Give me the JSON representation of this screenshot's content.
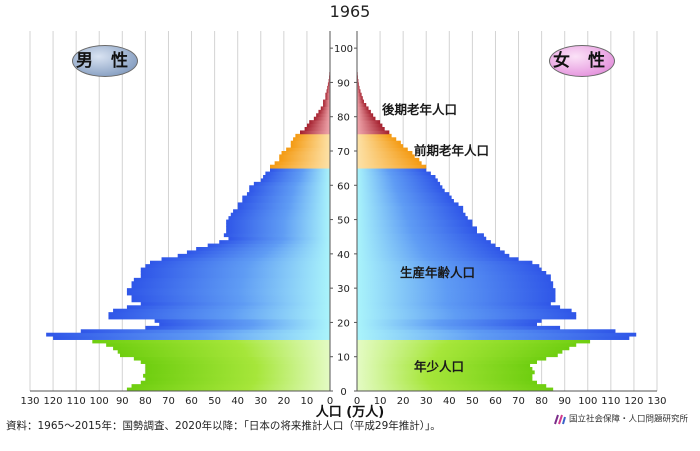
{
  "title": "1965",
  "badges": {
    "male": "男 性",
    "female": "女 性"
  },
  "segments": {
    "elderly_late": "後期老年人口",
    "elderly_early": "前期老年人口",
    "working": "生産年齢人口",
    "youth": "年少人口"
  },
  "x_axis_label": "人口 (万人)",
  "source": "資料：1965〜2015年：国勢調査、2020年以降：「日本の将来推計人口（平成29年推計）」。",
  "organization": "国立社会保障・人口問題研究所",
  "colors": {
    "youth": "#7fd61c",
    "working_inner": "#a8f4fb",
    "working_outer": "#2f56e8",
    "elderly_early": "#f7a21d",
    "elderly_late": "#b5323f",
    "grid": "#d3d3d3"
  },
  "chart_data": {
    "type": "bar",
    "orientation": "horizontal",
    "title": "1965",
    "xlabel": "人口 (万人)",
    "xlim": [
      0,
      130
    ],
    "ylim": [
      0,
      105
    ],
    "y_ticks": [
      0,
      10,
      20,
      30,
      40,
      50,
      60,
      70,
      80,
      90,
      100
    ],
    "x_ticks": [
      0,
      10,
      20,
      30,
      40,
      50,
      60,
      70,
      80,
      90,
      100,
      110,
      120,
      130
    ],
    "grid": true,
    "series": [
      {
        "name": "男 性",
        "ages": [
          0,
          1,
          2,
          3,
          4,
          5,
          6,
          7,
          8,
          9,
          10,
          11,
          12,
          13,
          14,
          15,
          16,
          17,
          18,
          19,
          20,
          21,
          22,
          23,
          24,
          25,
          26,
          27,
          28,
          29,
          30,
          31,
          32,
          33,
          34,
          35,
          36,
          37,
          38,
          39,
          40,
          41,
          42,
          43,
          44,
          45,
          46,
          47,
          48,
          49,
          50,
          51,
          52,
          53,
          54,
          55,
          56,
          57,
          58,
          59,
          60,
          61,
          62,
          63,
          64,
          65,
          66,
          67,
          68,
          69,
          70,
          71,
          72,
          73,
          74,
          75,
          76,
          77,
          78,
          79,
          80,
          81,
          82,
          83,
          84,
          85,
          86,
          87,
          88,
          89,
          90,
          91,
          92,
          93,
          94,
          95,
          96,
          97,
          98,
          99,
          100
        ],
        "values": [
          88,
          86,
          82,
          80,
          81,
          80,
          80,
          80,
          82,
          85,
          91,
          92,
          94,
          97,
          103,
          120,
          123,
          108,
          80,
          74,
          76,
          96,
          96,
          94,
          88,
          82,
          86,
          86,
          88,
          88,
          86,
          86,
          85,
          82,
          82,
          82,
          80,
          78,
          73,
          66,
          62,
          58,
          53,
          48,
          44,
          46,
          45,
          45,
          45,
          45,
          44,
          43,
          42,
          40,
          40,
          38,
          38,
          36,
          35,
          35,
          33,
          30,
          29,
          28,
          26,
          26,
          24,
          22,
          22,
          21,
          19,
          17,
          17,
          16,
          15,
          13,
          11,
          10,
          9,
          7,
          6,
          5,
          4,
          3,
          3,
          2,
          2,
          1.5,
          1.2,
          0.9,
          0.6,
          0.4,
          0.3,
          0.2,
          0.1,
          0.1,
          0,
          0,
          0,
          0,
          0
        ]
      },
      {
        "name": "女 性",
        "ages": [
          0,
          1,
          2,
          3,
          4,
          5,
          6,
          7,
          8,
          9,
          10,
          11,
          12,
          13,
          14,
          15,
          16,
          17,
          18,
          19,
          20,
          21,
          22,
          23,
          24,
          25,
          26,
          27,
          28,
          29,
          30,
          31,
          32,
          33,
          34,
          35,
          36,
          37,
          38,
          39,
          40,
          41,
          42,
          43,
          44,
          45,
          46,
          47,
          48,
          49,
          50,
          51,
          52,
          53,
          54,
          55,
          56,
          57,
          58,
          59,
          60,
          61,
          62,
          63,
          64,
          65,
          66,
          67,
          68,
          69,
          70,
          71,
          72,
          73,
          74,
          75,
          76,
          77,
          78,
          79,
          80,
          81,
          82,
          83,
          84,
          85,
          86,
          87,
          88,
          89,
          90,
          91,
          92,
          93,
          94,
          95,
          96,
          97,
          98,
          99,
          100
        ],
        "values": [
          85,
          82,
          78,
          76,
          76,
          77,
          76,
          75,
          78,
          82,
          87,
          89,
          92,
          95,
          101,
          118,
          121,
          112,
          88,
          78,
          80,
          95,
          95,
          93,
          88,
          84,
          86,
          86,
          86,
          86,
          85,
          85,
          84,
          84,
          82,
          80,
          79,
          76,
          70,
          66,
          64,
          62,
          60,
          58,
          56,
          55,
          52,
          52,
          50,
          50,
          48,
          47,
          46,
          46,
          44,
          42,
          41,
          40,
          38,
          37,
          36,
          35,
          34,
          32,
          30,
          30,
          28,
          27,
          25,
          24,
          22,
          20,
          19,
          17,
          15,
          14,
          12,
          11,
          10,
          8,
          7,
          6,
          5,
          4,
          3,
          2.5,
          2,
          1.5,
          1.1,
          0.8,
          0.6,
          0.4,
          0.3,
          0.2,
          0.1,
          0.1,
          0,
          0,
          0,
          0,
          0
        ]
      }
    ],
    "segment_bands": [
      {
        "name": "年少人口",
        "age_from": 0,
        "age_to": 14
      },
      {
        "name": "生産年齢人口",
        "age_from": 15,
        "age_to": 64
      },
      {
        "name": "前期老年人口",
        "age_from": 65,
        "age_to": 74
      },
      {
        "name": "後期老年人口",
        "age_from": 75,
        "age_to": 100
      }
    ]
  }
}
